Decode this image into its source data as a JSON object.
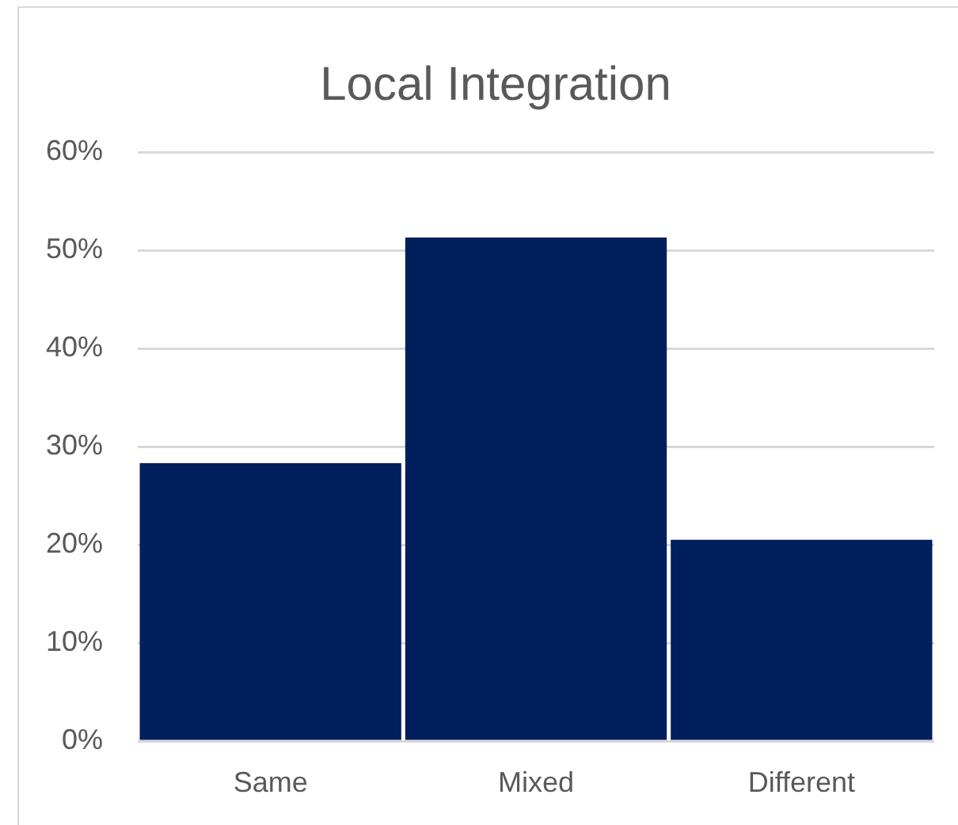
{
  "chart_data": {
    "type": "bar",
    "title": "Local Integration",
    "categories": [
      "Same",
      "Mixed",
      "Different"
    ],
    "values": [
      28.3,
      51.3,
      20.5
    ],
    "color": "#001f5c",
    "ylim": [
      0,
      60
    ],
    "yticks": [
      {
        "value": 0,
        "label": "0%"
      },
      {
        "value": 10,
        "label": "10%"
      },
      {
        "value": 20,
        "label": "20%"
      },
      {
        "value": 30,
        "label": "30%"
      },
      {
        "value": 40,
        "label": "40%"
      },
      {
        "value": 50,
        "label": "50%"
      },
      {
        "value": 60,
        "label": "60%"
      }
    ],
    "grid": "y"
  }
}
